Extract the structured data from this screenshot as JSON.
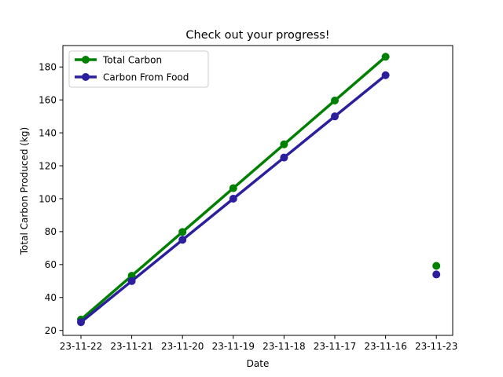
{
  "chart_data": {
    "type": "line",
    "title": "Check out your progress!",
    "xlabel": "Date",
    "ylabel": "Total Carbon Produced (kg)",
    "categories": [
      "23-11-22",
      "23-11-21",
      "23-11-20",
      "23-11-19",
      "23-11-18",
      "23-11-17",
      "23-11-16",
      "23-11-23"
    ],
    "ylim": [
      17,
      193
    ],
    "yticks": [
      20,
      40,
      60,
      80,
      100,
      120,
      140,
      160,
      180
    ],
    "grid": false,
    "legend": "top-left",
    "series": [
      {
        "name": "Total Carbon",
        "color": "#008000",
        "values": [
          26.6,
          53.2,
          79.8,
          106.4,
          133.0,
          159.6,
          186.2,
          59.2
        ],
        "connected_segments": [
          [
            0,
            6
          ]
        ]
      },
      {
        "name": "Carbon From Food",
        "color": "#2b1f9e",
        "values": [
          25,
          50,
          75,
          100,
          125,
          150,
          175,
          54
        ],
        "connected_segments": [
          [
            0,
            6
          ]
        ]
      }
    ]
  }
}
